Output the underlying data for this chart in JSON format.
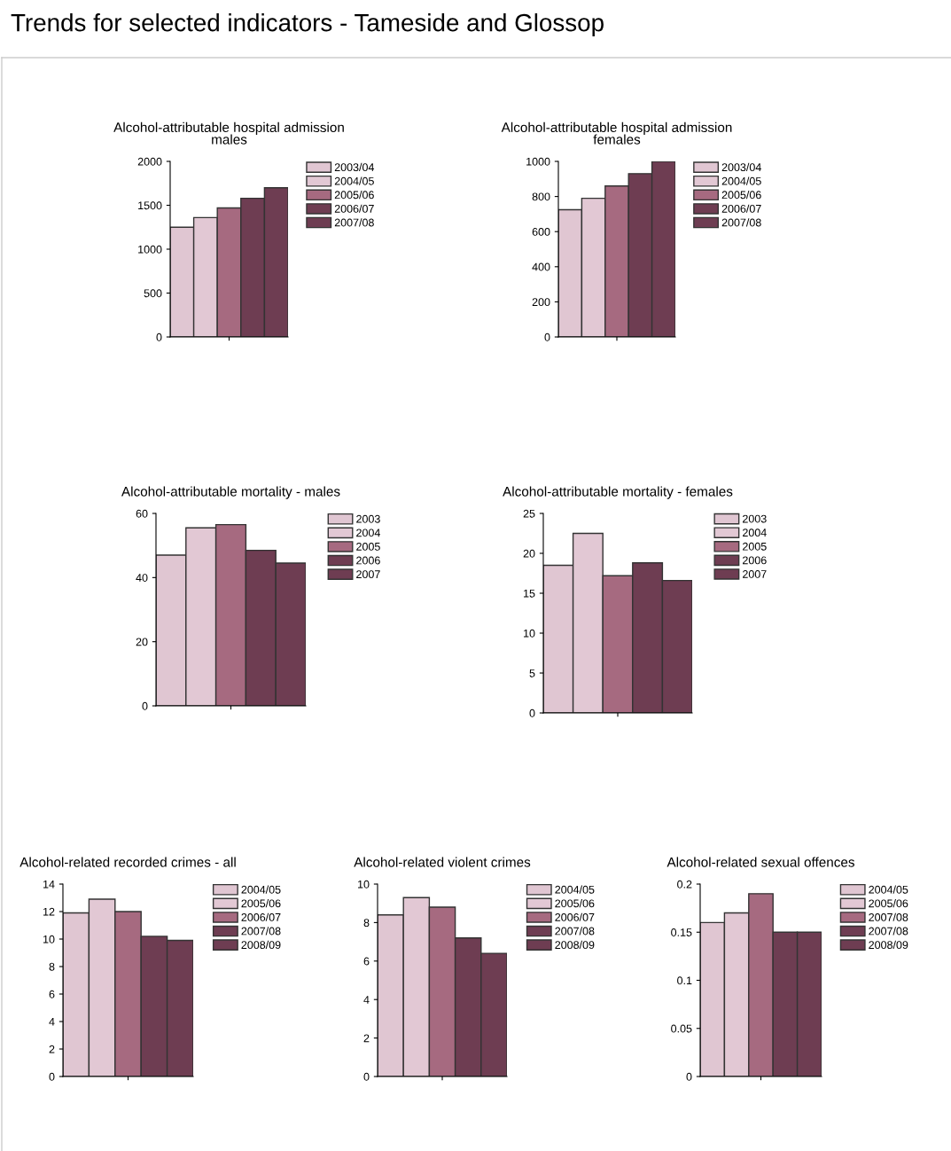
{
  "chart_data": [
    {
      "type": "bar",
      "title": "Alcohol-attributable hospital admission\nmales",
      "annotations": [
        "Trends for selected indicators - Tameside and Glossop"
      ],
      "categories": [
        null
      ],
      "ylim": [
        0,
        2000
      ],
      "yticks": [
        0,
        500,
        1000,
        1500,
        2000
      ],
      "legend": "right",
      "grid": false,
      "series": [
        {
          "name": "2003/04",
          "color": "#e0c6d2",
          "values": [
            1250
          ]
        },
        {
          "name": "2004/05",
          "color": "#e2c8d4",
          "values": [
            1360
          ]
        },
        {
          "name": "2005/06",
          "color": "#a66a80",
          "values": [
            1470
          ]
        },
        {
          "name": "2006/07",
          "color": "#6e3d52",
          "values": [
            1580
          ]
        },
        {
          "name": "2007/08",
          "color": "#6e3d52",
          "values": [
            1700
          ]
        }
      ]
    },
    {
      "type": "bar",
      "title": "Alcohol-attributable hospital admission\nfemales",
      "categories": [
        null
      ],
      "ylim": [
        0,
        1000
      ],
      "yticks": [
        0,
        200,
        400,
        600,
        800,
        1000
      ],
      "legend": "right",
      "grid": false,
      "series": [
        {
          "name": "2003/04",
          "color": "#e0c6d2",
          "values": [
            725
          ]
        },
        {
          "name": "2004/05",
          "color": "#e2c8d4",
          "values": [
            790
          ]
        },
        {
          "name": "2005/06",
          "color": "#a66a80",
          "values": [
            860
          ]
        },
        {
          "name": "2006/07",
          "color": "#6e3d52",
          "values": [
            930
          ]
        },
        {
          "name": "2007/08",
          "color": "#6e3d52",
          "values": [
            1000
          ]
        }
      ]
    },
    {
      "type": "bar",
      "title": "Alcohol-attributable mortality - males",
      "categories": [
        null
      ],
      "ylim": [
        0,
        60
      ],
      "yticks": [
        0,
        20,
        40,
        60
      ],
      "legend": "right",
      "grid": false,
      "series": [
        {
          "name": "2003",
          "color": "#e0c6d2",
          "values": [
            47
          ]
        },
        {
          "name": "2004",
          "color": "#e2c8d4",
          "values": [
            55.5
          ]
        },
        {
          "name": "2005",
          "color": "#a66a80",
          "values": [
            56.5
          ]
        },
        {
          "name": "2006",
          "color": "#6e3d52",
          "values": [
            48.5
          ]
        },
        {
          "name": "2007",
          "color": "#6e3d52",
          "values": [
            44.5
          ]
        }
      ]
    },
    {
      "type": "bar",
      "title": "Alcohol-attributable mortality - females",
      "categories": [
        null
      ],
      "ylim": [
        0,
        25
      ],
      "yticks": [
        0,
        5,
        10,
        15,
        20,
        25
      ],
      "legend": "right",
      "grid": false,
      "series": [
        {
          "name": "2003",
          "color": "#e0c6d2",
          "values": [
            18.5
          ]
        },
        {
          "name": "2004",
          "color": "#e2c8d4",
          "values": [
            22.5
          ]
        },
        {
          "name": "2005",
          "color": "#a66a80",
          "values": [
            17.2
          ]
        },
        {
          "name": "2006",
          "color": "#6e3d52",
          "values": [
            18.8
          ]
        },
        {
          "name": "2007",
          "color": "#6e3d52",
          "values": [
            16.6
          ]
        }
      ]
    },
    {
      "type": "bar",
      "title": "Alcohol-related recorded crimes - all",
      "categories": [
        null
      ],
      "ylim": [
        0,
        14
      ],
      "yticks": [
        0,
        2,
        4,
        6,
        8,
        10,
        12,
        14
      ],
      "legend": "right",
      "grid": false,
      "series": [
        {
          "name": "2004/05",
          "color": "#e0c6d2",
          "values": [
            11.9
          ]
        },
        {
          "name": "2005/06",
          "color": "#e2c8d4",
          "values": [
            12.9
          ]
        },
        {
          "name": "2006/07",
          "color": "#a66a80",
          "values": [
            12
          ]
        },
        {
          "name": "2007/08",
          "color": "#6e3d52",
          "values": [
            10.2
          ]
        },
        {
          "name": "2008/09",
          "color": "#6e3d52",
          "values": [
            9.9
          ]
        }
      ]
    },
    {
      "type": "bar",
      "title": "Alcohol-related violent crimes",
      "categories": [
        null
      ],
      "ylim": [
        0,
        10
      ],
      "yticks": [
        0,
        2,
        4,
        6,
        8,
        10
      ],
      "legend": "right",
      "grid": false,
      "series": [
        {
          "name": "2004/05",
          "color": "#e0c6d2",
          "values": [
            8.4
          ]
        },
        {
          "name": "2005/06",
          "color": "#e2c8d4",
          "values": [
            9.3
          ]
        },
        {
          "name": "2006/07",
          "color": "#a66a80",
          "values": [
            8.8
          ]
        },
        {
          "name": "2007/08",
          "color": "#6e3d52",
          "values": [
            7.2
          ]
        },
        {
          "name": "2008/09",
          "color": "#6e3d52",
          "values": [
            6.4
          ]
        }
      ]
    },
    {
      "type": "bar",
      "title": "Alcohol-related sexual offences",
      "categories": [
        null
      ],
      "ylim": [
        0,
        0.2
      ],
      "yticks": [
        0,
        0.05,
        0.1,
        0.15,
        0.2
      ],
      "legend": "right",
      "grid": false,
      "series": [
        {
          "name": "2004/05",
          "color": "#e0c6d2",
          "values": [
            0.16
          ]
        },
        {
          "name": "2005/06",
          "color": "#e2c8d4",
          "values": [
            0.17
          ]
        },
        {
          "name": "2007/08",
          "color": "#a66a80",
          "values": [
            0.19
          ]
        },
        {
          "name": "2007/08",
          "color": "#6e3d52",
          "values": [
            0.15
          ]
        },
        {
          "name": "2008/09",
          "color": "#6e3d52",
          "values": [
            0.15
          ]
        }
      ]
    }
  ]
}
